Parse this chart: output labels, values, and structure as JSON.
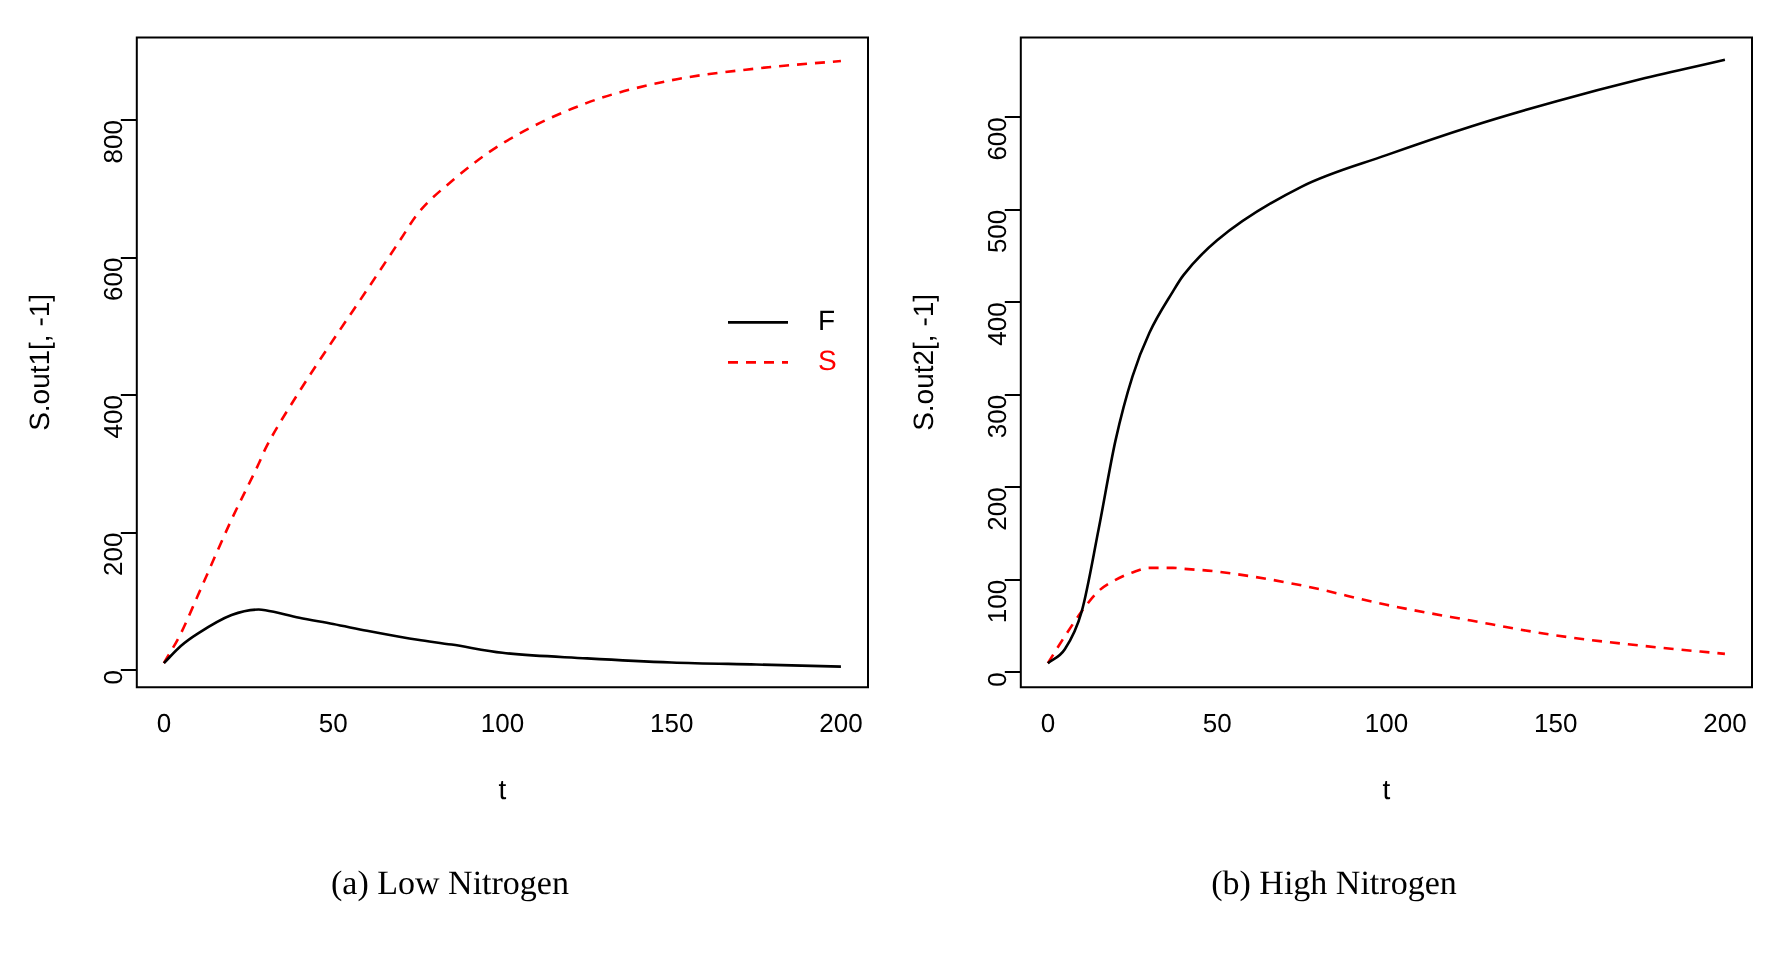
{
  "chart_data": [
    {
      "type": "line",
      "xlabel": "t",
      "ylabel": "S.out1[, -1]",
      "annotations": [
        "(a) Low Nitrogen"
      ],
      "xlim": [
        -8,
        208
      ],
      "ylim": [
        -25,
        920
      ],
      "xticks": [
        0,
        50,
        100,
        150,
        200
      ],
      "yticks": [
        0,
        200,
        400,
        600,
        800
      ],
      "grid": false,
      "legend": "right",
      "x": [
        0,
        5,
        10,
        20,
        28,
        30,
        40,
        50,
        60,
        70,
        75,
        85,
        100,
        125,
        150,
        175,
        200
      ],
      "series": [
        {
          "name": "F",
          "color": "#000000",
          "line_style": "solid",
          "values": [
            10,
            35,
            53,
            80,
            88,
            87,
            76,
            67,
            57,
            48,
            44,
            37,
            25,
            17,
            11,
            8,
            5
          ]
        },
        {
          "name": "S",
          "color": "#ff0000",
          "line_style": "dashed",
          "values": [
            10,
            53,
            108,
            219,
            300,
            322,
            405,
            480,
            553,
            627,
            664,
            711,
            766,
            825,
            858,
            875,
            886
          ]
        }
      ]
    },
    {
      "type": "line",
      "xlabel": "t",
      "ylabel": "S.out2[, -1]",
      "annotations": [
        "(b) High Nitrogen"
      ],
      "xlim": [
        -8,
        208
      ],
      "ylim": [
        -16,
        686
      ],
      "xticks": [
        0,
        50,
        100,
        150,
        200
      ],
      "yticks": [
        0,
        100,
        200,
        300,
        400,
        500,
        600
      ],
      "grid": false,
      "x": [
        0,
        5,
        10,
        15,
        20,
        25,
        30,
        37,
        40,
        50,
        75,
        100,
        125,
        150,
        175,
        200
      ],
      "series": [
        {
          "color": "#000000",
          "line_style": "solid",
          "values": [
            10,
            25,
            66,
            155,
            251,
            320,
            367,
            412,
            429,
            467,
            525,
            559,
            590,
            617,
            641,
            662
          ]
        },
        {
          "color": "#ff0000",
          "line_style": "dashed",
          "values": [
            10,
            39,
            66,
            88,
            100,
            108,
            113,
            113,
            112,
            109,
            94,
            73,
            56,
            40,
            29,
            20
          ]
        }
      ]
    }
  ]
}
